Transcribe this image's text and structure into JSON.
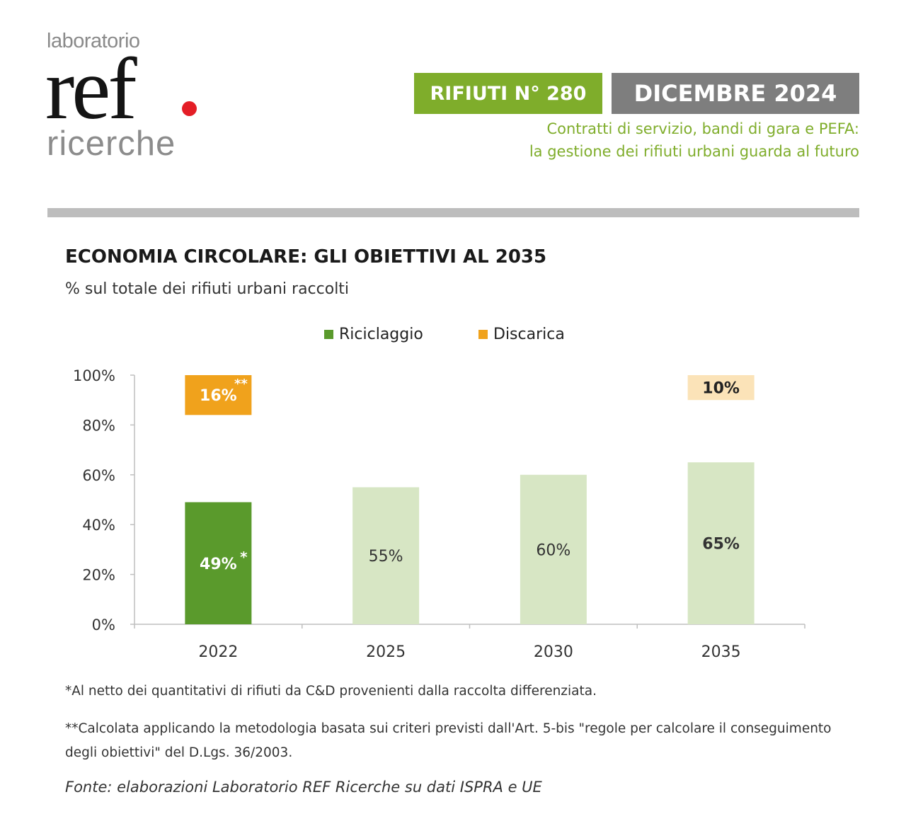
{
  "logo": {
    "top_text": "laboratorio",
    "main_text": "ref",
    "bottom_text": "ricerche",
    "dot_color": "#e41e26"
  },
  "header": {
    "issue_label": "RIFIUTI N° 280",
    "date_label": "DICEMBRE 2024",
    "subtitle_line1": "Contratti di servizio, bandi di gara e PEFA:",
    "subtitle_line2": "la gestione dei rifiuti urbani guarda al futuro",
    "accent_color": "#7fad2b",
    "date_color": "#7e7e7e"
  },
  "chart_data": {
    "type": "bar",
    "title": "ECONOMIA CIRCOLARE: GLI OBIETTIVI AL 2035",
    "subtitle": "% sul totale dei rifiuti urbani raccolti",
    "categories": [
      "2022",
      "2025",
      "2030",
      "2035"
    ],
    "ylim": [
      0,
      100
    ],
    "yticks": [
      "0%",
      "20%",
      "40%",
      "60%",
      "80%",
      "100%"
    ],
    "grid": false,
    "legend": "top",
    "series": [
      {
        "name": "Riciclaggio",
        "color": "#5a9a2c",
        "values": [
          49,
          55,
          60,
          65
        ],
        "labels": [
          "49%",
          "55%",
          "60%",
          "65%"
        ],
        "marks": [
          "*",
          "",
          "",
          ""
        ]
      },
      {
        "name": "Discarica",
        "color": "#f0a21c",
        "values": [
          16,
          null,
          null,
          10
        ],
        "labels": [
          "16%",
          "",
          "",
          "10%"
        ],
        "marks": [
          "**",
          "",
          "",
          ""
        ]
      }
    ]
  },
  "notes": {
    "note1": "*Al netto dei quantitativi di rifiuti da C&D provenienti dalla raccolta differenziata.",
    "note2": "**Calcolata applicando la metodologia basata sui criteri previsti dall'Art. 5-bis \"regole per calcolare il conseguimento degli obiettivi\" del D.Lgs. 36/2003.",
    "source": "Fonte: elaborazioni Laboratorio REF Ricerche su dati ISPRA e UE"
  }
}
